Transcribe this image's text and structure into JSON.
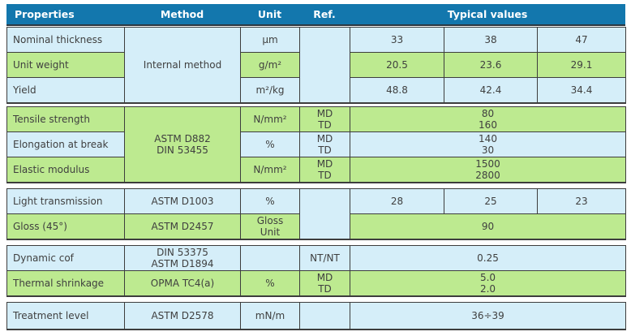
{
  "colors": {
    "header_bg": "#1377ad",
    "header_text": "#ffffff",
    "row_blue": "#d5eef9",
    "row_green": "#bdea90",
    "border": "#3d3d3d",
    "text": "#3f3f3f"
  },
  "header": {
    "properties": "Properties",
    "method": "Method",
    "unit": "Unit",
    "ref": "Ref.",
    "typical": "Typical values"
  },
  "s1": {
    "method": "Internal method",
    "ref": "",
    "r1": {
      "name": "Nominal thickness",
      "unit": "µm",
      "v1": "33",
      "v2": "38",
      "v3": "47"
    },
    "r2": {
      "name": "Unit weight",
      "unit": "g/m²",
      "v1": "20.5",
      "v2": "23.6",
      "v3": "29.1"
    },
    "r3": {
      "name": "Yield",
      "unit": "m²/kg",
      "v1": "48.8",
      "v2": "42.4",
      "v3": "34.4"
    }
  },
  "s2": {
    "method": "ASTM D882\nDIN 53455",
    "r1": {
      "name": "Tensile strength",
      "unit": "N/mm²",
      "ref": "MD\nTD",
      "value": "80\n160"
    },
    "r2": {
      "name": "Elongation at break",
      "unit": "%",
      "ref": "MD\nTD",
      "value": "140\n30"
    },
    "r3": {
      "name": "Elastic modulus",
      "unit": "N/mm²",
      "ref": "MD\nTD",
      "value": "1500\n2800"
    }
  },
  "s3": {
    "ref": "",
    "r1": {
      "name": "Light transmission",
      "method": "ASTM D1003",
      "unit": "%",
      "v1": "28",
      "v2": "25",
      "v3": "23"
    },
    "r2": {
      "name": "Gloss (45°)",
      "method": "ASTM D2457",
      "unit": "Gloss\nUnit",
      "value": "90"
    }
  },
  "s4": {
    "r1": {
      "name": "Dynamic cof",
      "method": "DIN 53375\nASTM D1894",
      "unit": "",
      "ref": "NT/NT",
      "value": "0.25"
    },
    "r2": {
      "name": "Thermal shrinkage",
      "method": "OPMA TC4(a)",
      "unit": "%",
      "ref": "MD\nTD",
      "value": "5.0\n2.0"
    }
  },
  "s5": {
    "r1": {
      "name": "Treatment level",
      "method": "ASTM D2578",
      "unit": "mN/m",
      "ref": "",
      "value": "36÷39"
    }
  }
}
